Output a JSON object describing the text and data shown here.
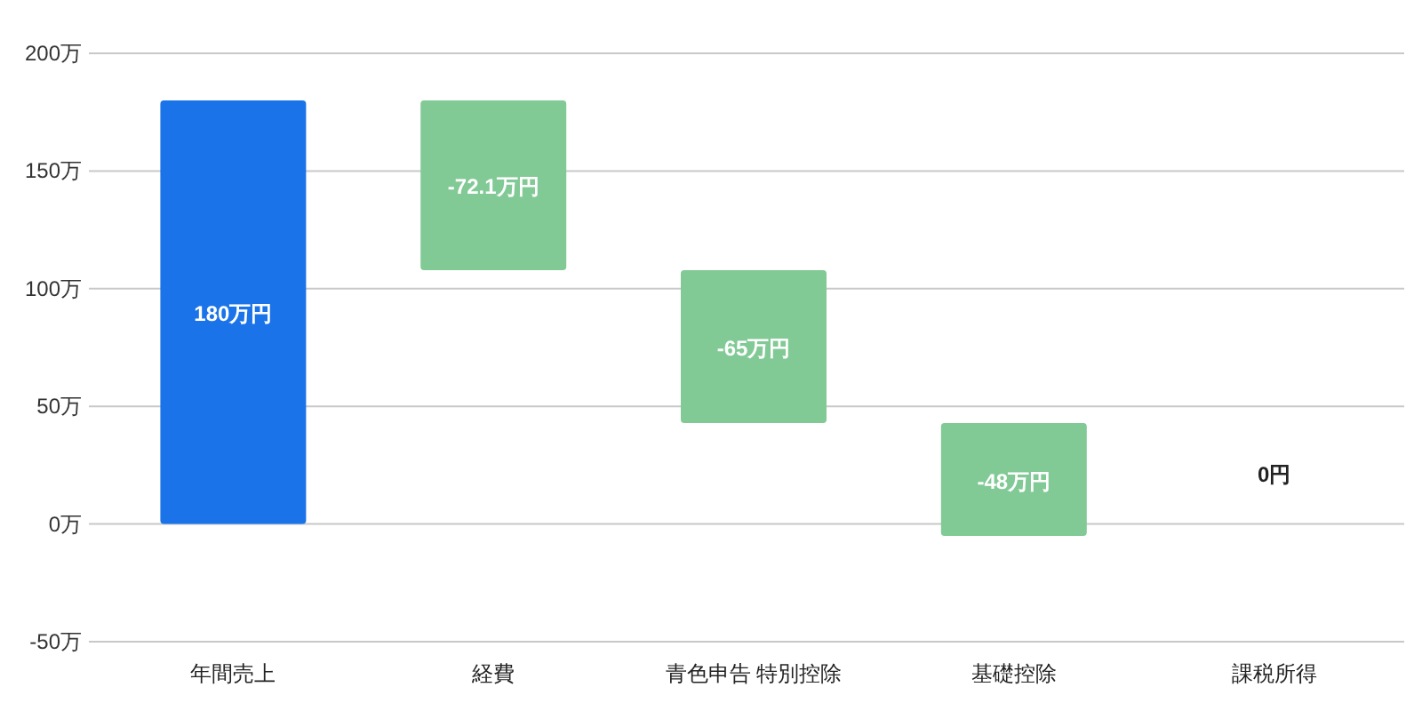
{
  "chart_data": {
    "type": "bar",
    "categories": [
      "年間売上",
      "経費",
      "青色申告 特別控除",
      "基礎控除",
      "課税所得"
    ],
    "values": [
      180,
      -72.1,
      -65,
      -48,
      0
    ],
    "base": [
      0,
      180,
      107.9,
      42.9,
      0
    ],
    "colors": [
      "#1a73e8",
      "#81c995",
      "#81c995",
      "#81c995",
      "#81c995"
    ],
    "value_labels": [
      "180万円",
      "-72.1万円",
      "-65万円",
      "-48万円",
      "0円"
    ],
    "ylim": [
      -50,
      200
    ],
    "yticks": [
      {
        "value": -50,
        "label": "-50万"
      },
      {
        "value": 0,
        "label": "0万"
      },
      {
        "value": 50,
        "label": "50万"
      },
      {
        "value": 100,
        "label": "100万"
      },
      {
        "value": 150,
        "label": "150万"
      },
      {
        "value": 200,
        "label": "200万"
      }
    ],
    "grid": "y"
  }
}
